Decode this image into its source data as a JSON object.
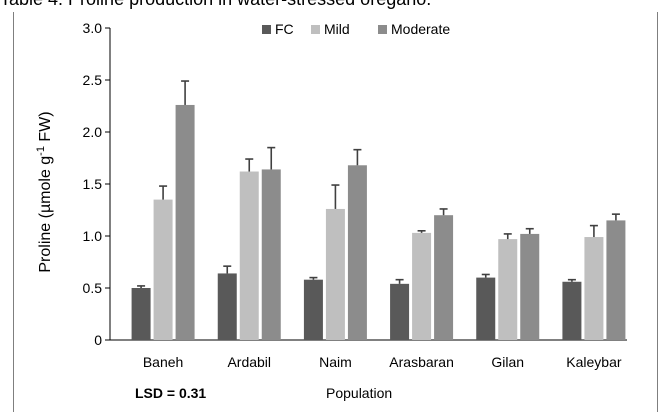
{
  "caption": "Table 4. Proline production in water-stressed oregano.",
  "lsd_label": "LSD = 0.31",
  "colors": {
    "FC": "#595959",
    "Mild": "#bfbfbf",
    "Moderate": "#8c8c8c",
    "axis": "#000000",
    "frame": "#7f7f7f",
    "error_bar": "#404040"
  },
  "chart_data": {
    "type": "bar",
    "title": "",
    "xlabel": "Population",
    "ylabel_main": "Proline (µmole g",
    "ylabel_sup": "-1",
    "ylabel_end": " FW)",
    "ylim": [
      0,
      3.0
    ],
    "yticks": [
      "0",
      "0.5",
      "1.0",
      "1.5",
      "2.0",
      "2.5",
      "3.0"
    ],
    "grid": false,
    "legend_position": "top-center",
    "categories": [
      "Baneh",
      "Ardabil",
      "Naim",
      "Arasbaran",
      "Gilan",
      "Kaleybar"
    ],
    "series": [
      {
        "name": "FC",
        "values": [
          0.5,
          0.64,
          0.58,
          0.54,
          0.6,
          0.56
        ],
        "errors": [
          0.02,
          0.07,
          0.02,
          0.04,
          0.03,
          0.02
        ]
      },
      {
        "name": "Mild",
        "values": [
          1.35,
          1.62,
          1.26,
          1.03,
          0.97,
          0.99
        ],
        "errors": [
          0.13,
          0.12,
          0.23,
          0.02,
          0.05,
          0.11
        ]
      },
      {
        "name": "Moderate",
        "values": [
          2.26,
          1.64,
          1.68,
          1.2,
          1.02,
          1.15
        ],
        "errors": [
          0.23,
          0.21,
          0.15,
          0.06,
          0.05,
          0.06
        ]
      }
    ]
  }
}
